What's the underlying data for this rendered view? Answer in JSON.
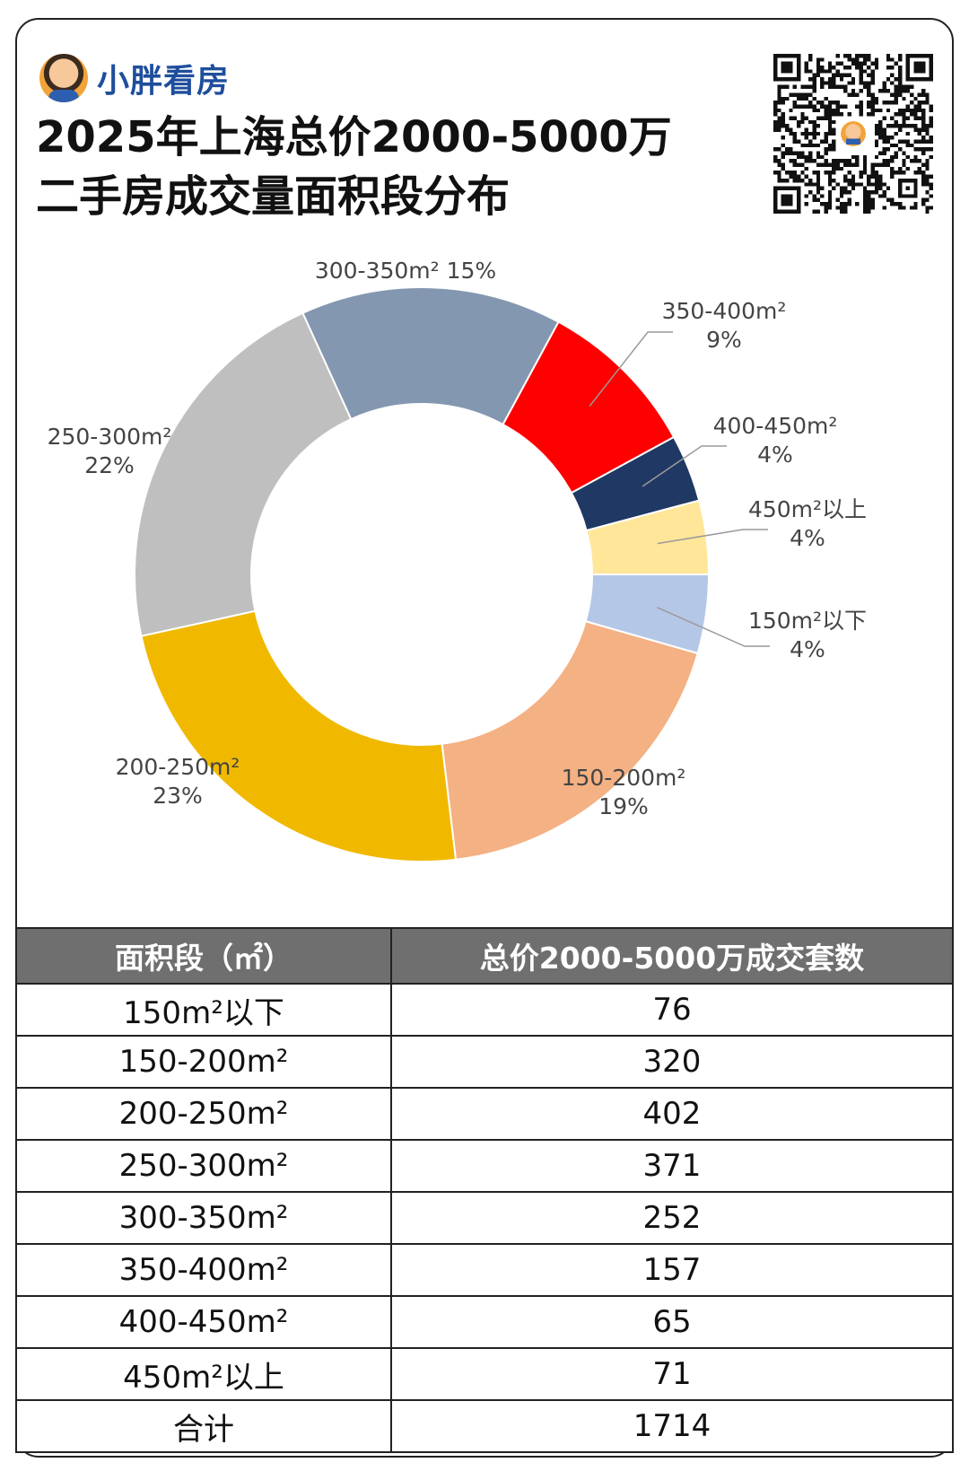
{
  "brand": {
    "name": "小胖看房"
  },
  "title": {
    "line1": "2025年上海总价2000-5000万",
    "line2": "二手房成交量面积段分布"
  },
  "colors": {
    "s150_below": "#b4c7e7",
    "s150_200": "#f4b183",
    "s200_250": "#f0b900",
    "s250_300": "#bfbfbf",
    "s300_350": "#8497b0",
    "s350_400": "#ff0000",
    "s400_450": "#203864",
    "s450_above": "#ffe699",
    "table_header": "#6f6f6f"
  },
  "chart_data": {
    "type": "pie",
    "donut": true,
    "slices": [
      {
        "name": "150m²以下",
        "value": 76,
        "label": "150m²以下",
        "pct": "4%"
      },
      {
        "name": "150-200m²",
        "value": 320,
        "label": "150-200m²",
        "pct": "19%"
      },
      {
        "name": "200-250m²",
        "value": 402,
        "label": "200-250m²",
        "pct": "23%"
      },
      {
        "name": "250-300m²",
        "value": 371,
        "label": "250-300m²",
        "pct": "22%"
      },
      {
        "name": "300-350m²",
        "value": 252,
        "label": "300-350m² 15%",
        "pct": ""
      },
      {
        "name": "350-400m²",
        "value": 157,
        "label": "350-400m²",
        "pct": "9%"
      },
      {
        "name": "400-450m²",
        "value": 65,
        "label": "400-450m²",
        "pct": "4%"
      },
      {
        "name": "450m²以上",
        "value": 71,
        "label": "450m²以上",
        "pct": "4%"
      }
    ]
  },
  "table": {
    "headers": [
      "面积段（㎡）",
      "总价2000-5000万成交套数"
    ],
    "rows": [
      [
        "150m²以下",
        "76"
      ],
      [
        "150-200m²",
        "320"
      ],
      [
        "200-250m²",
        "402"
      ],
      [
        "250-300m²",
        "371"
      ],
      [
        "300-350m²",
        "252"
      ],
      [
        "350-400m²",
        "157"
      ],
      [
        "400-450m²",
        "65"
      ],
      [
        "450m²以上",
        "71"
      ],
      [
        "合计",
        "1714"
      ]
    ]
  }
}
